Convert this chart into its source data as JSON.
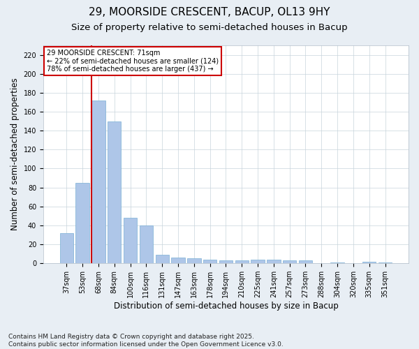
{
  "title1": "29, MOORSIDE CRESCENT, BACUP, OL13 9HY",
  "title2": "Size of property relative to semi-detached houses in Bacup",
  "xlabel": "Distribution of semi-detached houses by size in Bacup",
  "ylabel": "Number of semi-detached properties",
  "categories": [
    "37sqm",
    "53sqm",
    "68sqm",
    "84sqm",
    "100sqm",
    "116sqm",
    "131sqm",
    "147sqm",
    "163sqm",
    "178sqm",
    "194sqm",
    "210sqm",
    "225sqm",
    "241sqm",
    "257sqm",
    "273sqm",
    "288sqm",
    "304sqm",
    "320sqm",
    "335sqm",
    "351sqm"
  ],
  "values": [
    32,
    85,
    172,
    150,
    48,
    40,
    9,
    6,
    5,
    4,
    3,
    3,
    4,
    4,
    3,
    3,
    0,
    1,
    0,
    2,
    1
  ],
  "bar_color": "#aec6e8",
  "bar_edgecolor": "#7aafd4",
  "vline_color": "#cc0000",
  "vline_xindex": 2,
  "annotation_title": "29 MOORSIDE CRESCENT: 71sqm",
  "annotation_line2": "← 22% of semi-detached houses are smaller (124)",
  "annotation_line3": "78% of semi-detached houses are larger (437) →",
  "annotation_box_edgecolor": "#cc0000",
  "ylim": [
    0,
    230
  ],
  "yticks": [
    0,
    20,
    40,
    60,
    80,
    100,
    120,
    140,
    160,
    180,
    200,
    220
  ],
  "footer1": "Contains HM Land Registry data © Crown copyright and database right 2025.",
  "footer2": "Contains public sector information licensed under the Open Government Licence v3.0.",
  "bg_color": "#e8eef4",
  "plot_bg_color": "#ffffff",
  "title_fontsize": 11,
  "subtitle_fontsize": 9.5,
  "tick_fontsize": 7,
  "label_fontsize": 8.5,
  "footer_fontsize": 6.5
}
